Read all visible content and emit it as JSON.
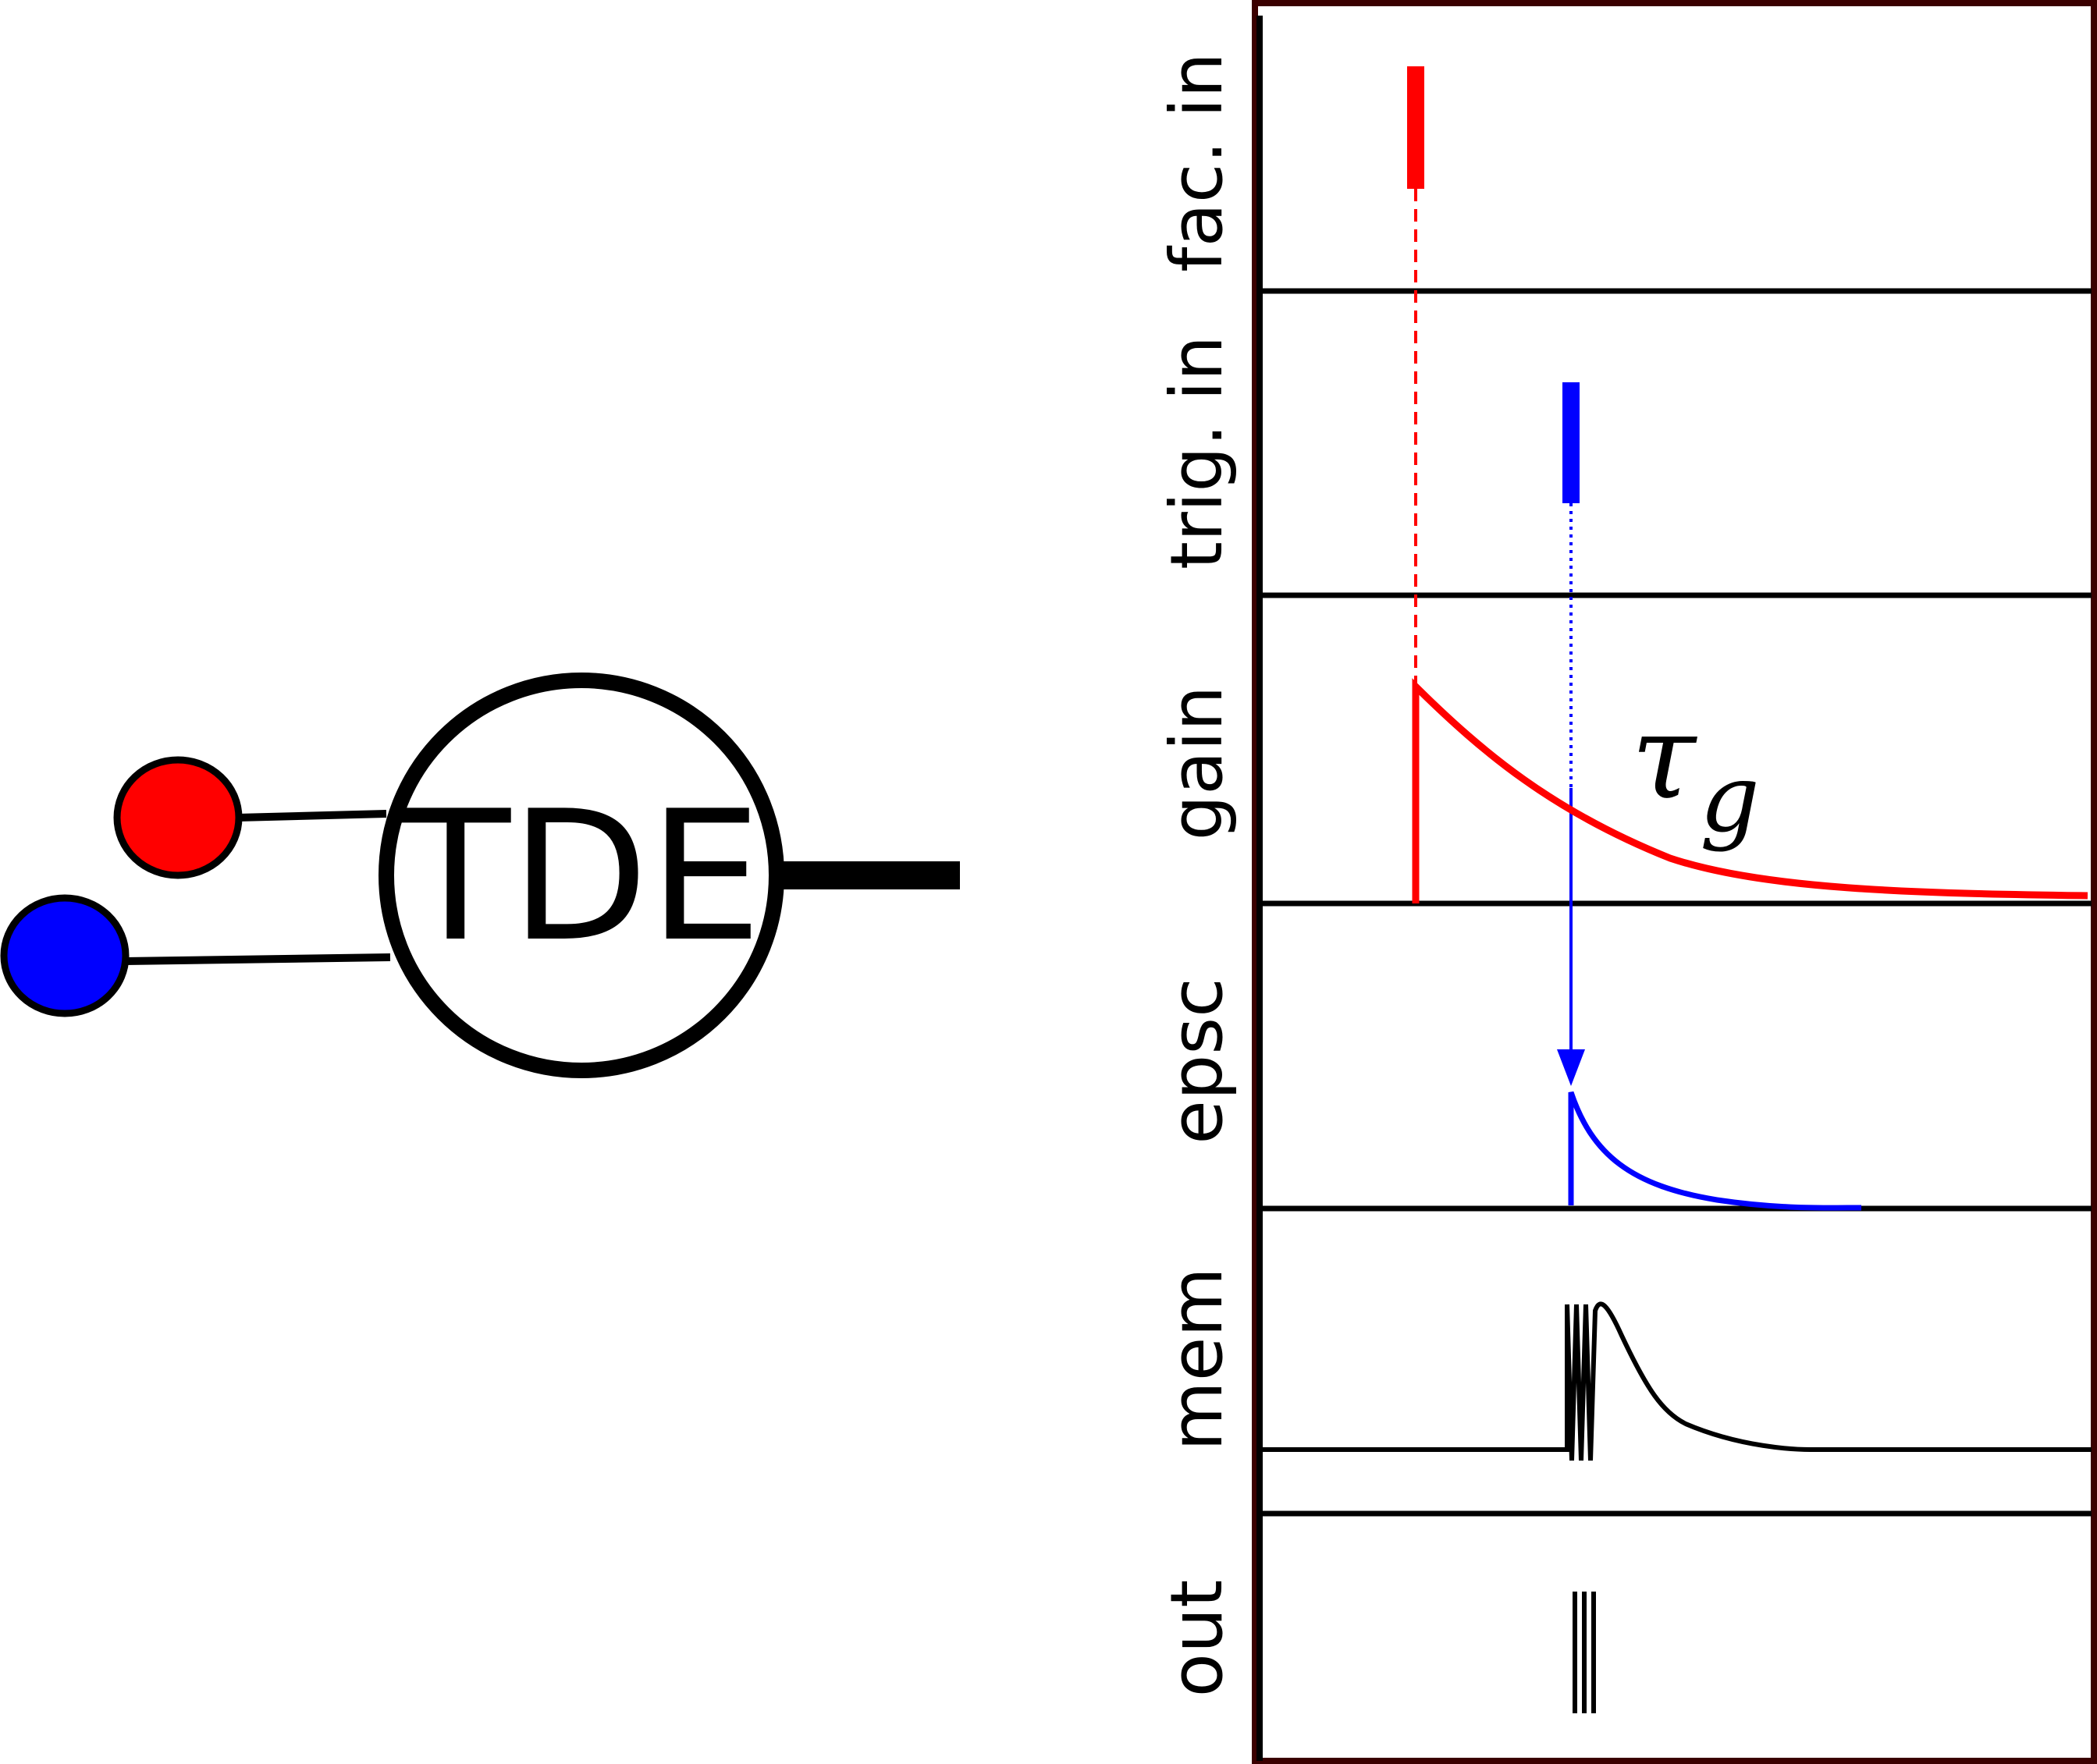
{
  "neuron": {
    "label": "TDE",
    "inputs": [
      {
        "name": "facilitatory",
        "color": "#ff0000"
      },
      {
        "name": "trigger",
        "color": "#0000ff"
      }
    ]
  },
  "traces": {
    "rows": [
      {
        "label": "fac. in"
      },
      {
        "label": "trig. in"
      },
      {
        "label": "gain"
      },
      {
        "label": "epsc"
      },
      {
        "label": "mem"
      },
      {
        "label": "out"
      }
    ],
    "gain_annotation": {
      "symbol": "τ",
      "subscript": "g"
    }
  },
  "colors": {
    "red": "#ff0000",
    "blue": "#0000ff",
    "black": "#000000",
    "panel_border": "#3a0000"
  }
}
